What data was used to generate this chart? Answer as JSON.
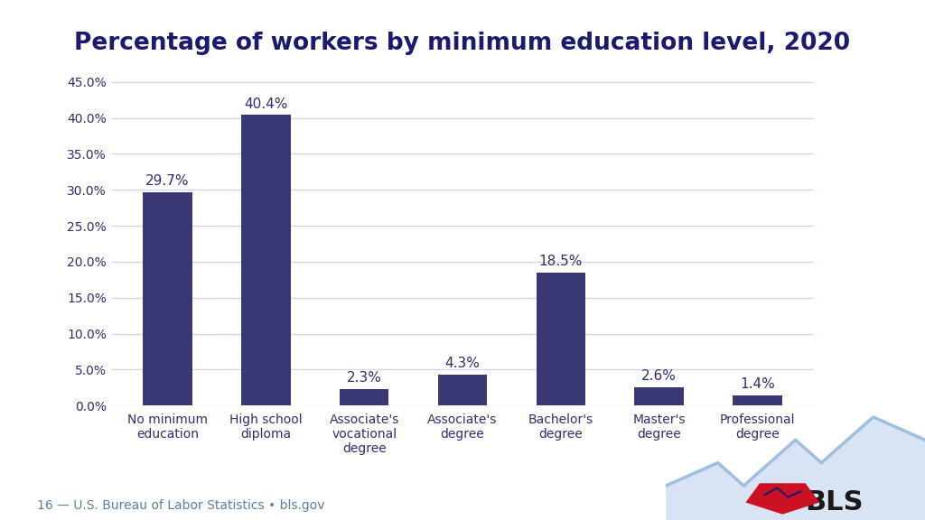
{
  "title": "Percentage of workers by minimum education level, 2020",
  "title_color": "#1a1a6e",
  "title_fontsize": 19,
  "categories": [
    "No minimum\neducation",
    "High school\ndiploma",
    "Associate's\nvocational\ndegree",
    "Associate's\ndegree",
    "Bachelor's\ndegree",
    "Master's\ndegree",
    "Professional\ndegree"
  ],
  "values": [
    29.7,
    40.4,
    2.3,
    4.3,
    18.5,
    2.6,
    1.4
  ],
  "bar_color": "#383874",
  "ylim": [
    0,
    47
  ],
  "yticks": [
    0.0,
    5.0,
    10.0,
    15.0,
    20.0,
    25.0,
    30.0,
    35.0,
    40.0,
    45.0
  ],
  "grid_color": "#d0d4f0",
  "background_color": "#ffffff",
  "label_color": "#2e2e6e",
  "label_fontsize": 11,
  "tick_label_color": "#2e2e6e",
  "tick_label_fontsize": 10,
  "footer_text": "16 — U.S. Bureau of Labor Statistics • bls.gov",
  "footer_color": "#5a7fa8",
  "footer_fontsize": 10,
  "bar_width": 0.5
}
